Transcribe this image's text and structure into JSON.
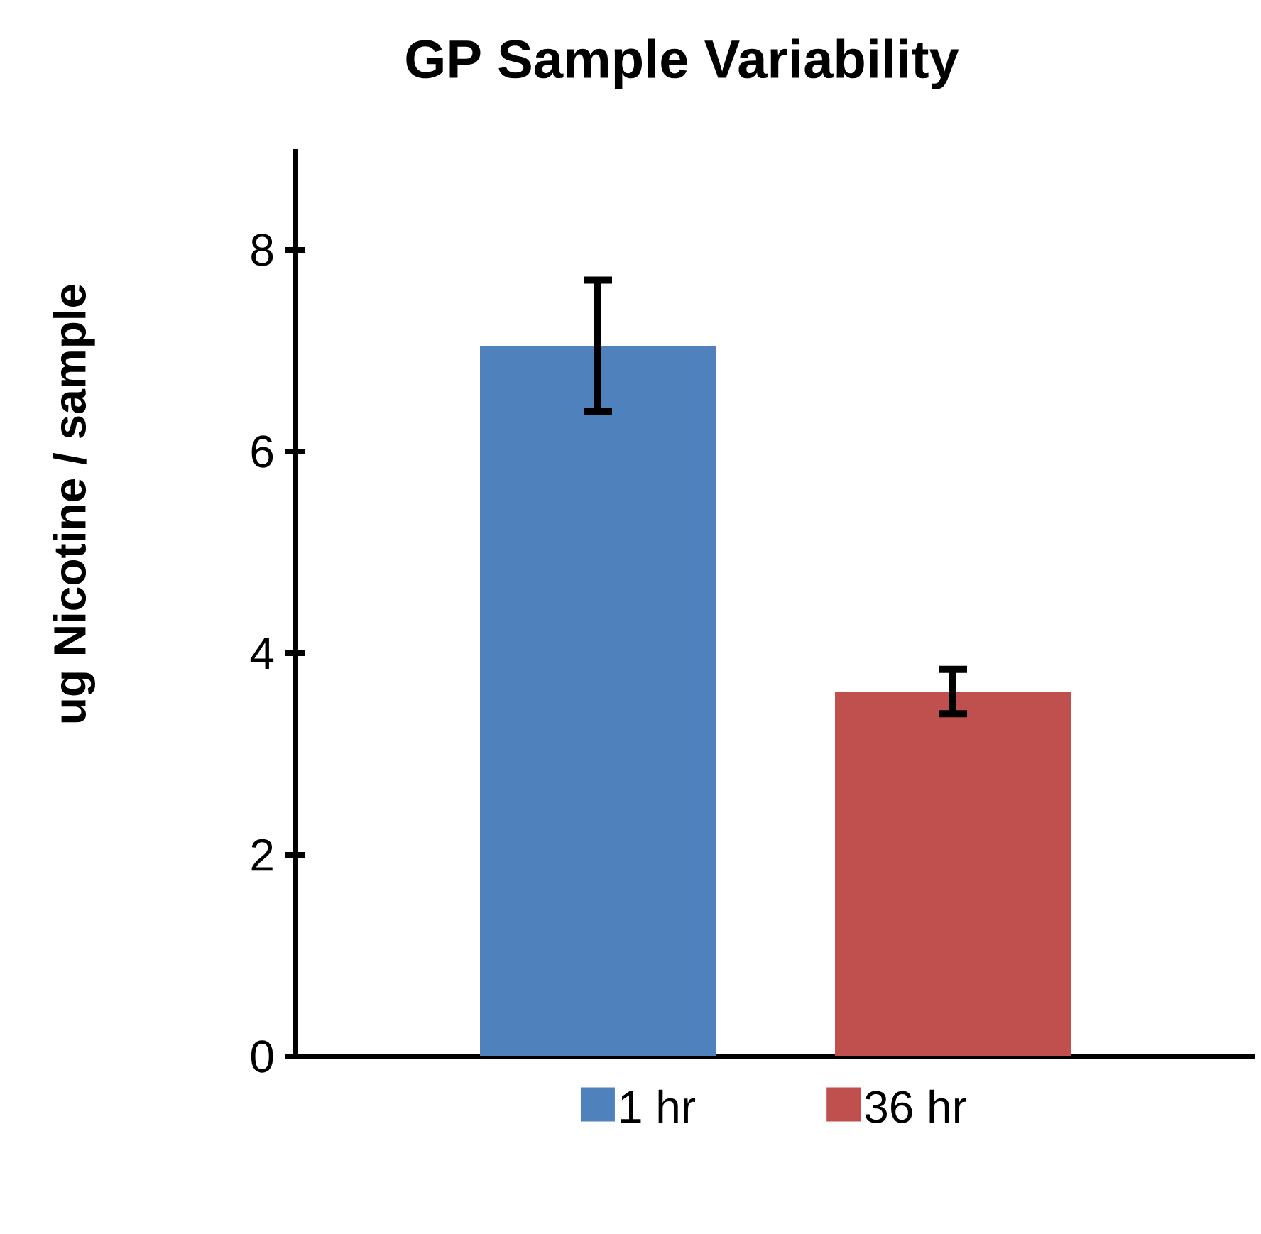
{
  "chart_data": {
    "type": "bar",
    "title": "GP Sample Variability",
    "ylabel": "ug Nicotine / sample",
    "categories": [
      null
    ],
    "series": [
      {
        "name": "1 hr",
        "color": "#4f81bd",
        "values": [
          7.05
        ],
        "errors": [
          0.65
        ]
      },
      {
        "name": "36 hr",
        "color": "#c0504d",
        "values": [
          3.62
        ],
        "errors": [
          0.22
        ]
      }
    ],
    "ylim": [
      0,
      9
    ],
    "yticks": [
      0,
      2,
      4,
      6,
      8
    ],
    "legend": "bottom"
  }
}
